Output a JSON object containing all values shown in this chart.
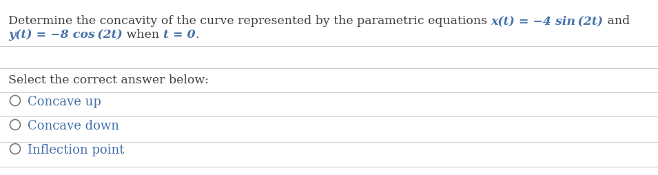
{
  "bg_color": "#ffffff",
  "line_color": "#cccccc",
  "text_color_dark": "#444444",
  "text_color_blue": "#4472aa",
  "text_color_circle": "#777777",
  "q_plain1": "Determine the concavity of the curve represented by the parametric equations ",
  "q_math1": "x(t) = −4 sin (2t)",
  "q_end1": " and",
  "q_math2": "y(t) = −8 cos (2t)",
  "q_plain2": " when ",
  "q_math3": "t = 0",
  "q_end2": ".",
  "select_text": "Select the correct answer below:",
  "options": [
    "Concave up",
    "Concave down",
    "Inflection point"
  ],
  "font_size": 12.5,
  "font_size_opt": 13,
  "font_family": "DejaVu Serif"
}
